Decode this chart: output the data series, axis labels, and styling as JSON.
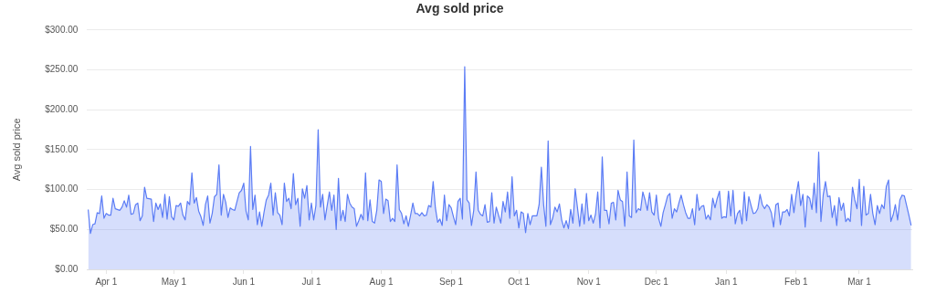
{
  "chart_data": {
    "type": "area",
    "title": "Avg sold price",
    "ylabel": "Avg sold price",
    "categories": [
      null,
      null,
      null,
      null,
      null,
      null,
      null,
      null,
      "Apr 1",
      null,
      null,
      null,
      null,
      null,
      null,
      null,
      null,
      null,
      null,
      null,
      null,
      null,
      null,
      null,
      null,
      null,
      null,
      null,
      null,
      null,
      null,
      null,
      null,
      null,
      null,
      null,
      null,
      null,
      "May 1",
      null,
      null,
      null,
      null,
      null,
      null,
      null,
      null,
      null,
      null,
      null,
      null,
      null,
      null,
      null,
      null,
      null,
      null,
      null,
      null,
      null,
      null,
      null,
      null,
      null,
      null,
      null,
      null,
      null,
      null,
      "Jun 1",
      null,
      null,
      null,
      null,
      null,
      null,
      null,
      null,
      null,
      null,
      null,
      null,
      null,
      null,
      null,
      null,
      null,
      null,
      null,
      null,
      null,
      null,
      null,
      null,
      null,
      null,
      null,
      null,
      null,
      "Jul 1",
      null,
      null,
      null,
      null,
      null,
      null,
      null,
      null,
      null,
      null,
      null,
      null,
      null,
      null,
      null,
      null,
      null,
      null,
      null,
      null,
      null,
      null,
      null,
      null,
      null,
      null,
      null,
      null,
      null,
      null,
      "Aug 1",
      null,
      null,
      null,
      null,
      null,
      null,
      null,
      null,
      null,
      null,
      null,
      null,
      null,
      null,
      null,
      null,
      null,
      null,
      null,
      null,
      null,
      null,
      null,
      null,
      null,
      null,
      null,
      null,
      null,
      null,
      "Sep 1",
      null,
      null,
      null,
      null,
      null,
      null,
      null,
      null,
      null,
      null,
      null,
      null,
      null,
      null,
      null,
      null,
      null,
      null,
      null,
      null,
      null,
      null,
      null,
      null,
      null,
      null,
      null,
      null,
      null,
      "Oct 1",
      null,
      null,
      null,
      null,
      null,
      null,
      null,
      null,
      null,
      null,
      null,
      null,
      null,
      null,
      null,
      null,
      null,
      null,
      null,
      null,
      null,
      null,
      null,
      null,
      null,
      null,
      null,
      null,
      null,
      null,
      "Nov 1",
      null,
      null,
      null,
      null,
      null,
      null,
      null,
      null,
      null,
      null,
      null,
      null,
      null,
      null,
      null,
      null,
      null,
      null,
      null,
      null,
      null,
      null,
      null,
      null,
      null,
      null,
      null,
      null,
      null,
      "Dec 1",
      null,
      null,
      null,
      null,
      null,
      null,
      null,
      null,
      null,
      null,
      null,
      null,
      null,
      null,
      null,
      null,
      null,
      null,
      null,
      null,
      null,
      null,
      null,
      null,
      null,
      null,
      null,
      null,
      null,
      null,
      "Jan 1",
      null,
      null,
      null,
      null,
      null,
      null,
      null,
      null,
      null,
      null,
      null,
      null,
      null,
      null,
      null,
      null,
      null,
      null,
      null,
      null,
      null,
      null,
      null,
      null,
      null,
      null,
      null,
      null,
      null,
      null,
      "Feb 1",
      null,
      null,
      null,
      null,
      null,
      null,
      null,
      null,
      null,
      null,
      null,
      null,
      null,
      null,
      null,
      null,
      null,
      null,
      null,
      null,
      null,
      null,
      null,
      null,
      null,
      null,
      null,
      "Mar 1",
      null,
      null,
      null,
      null,
      null,
      null,
      null,
      null,
      null,
      null,
      null,
      null,
      null,
      null,
      null,
      null,
      null,
      null,
      null,
      null,
      null,
      null,
      null
    ],
    "ylim": [
      0,
      300
    ],
    "yticks": [
      {
        "value": 0,
        "label": "$0.00"
      },
      {
        "value": 50,
        "label": "$50.00"
      },
      {
        "value": 100,
        "label": "$100.00"
      },
      {
        "value": 150,
        "label": "$150.00"
      },
      {
        "value": 200,
        "label": "$200.00"
      },
      {
        "value": 250,
        "label": "$250.00"
      },
      {
        "value": 300,
        "label": "$300.00"
      }
    ],
    "grid": "y",
    "legend": false,
    "series": [
      {
        "color": "#5b7cf5",
        "values": [
          75,
          45,
          56,
          57,
          71,
          70,
          92,
          64,
          70,
          68,
          68,
          89,
          76,
          null,
          74,
          78,
          86,
          78,
          93,
          69,
          70,
          81,
          83,
          61,
          67,
          103,
          89,
          null,
          88,
          60,
          83,
          75,
          82,
          65,
          94,
          63,
          91,
          66,
          62,
          80,
          79,
          83,
          68,
          62,
          85,
          81,
          121,
          83,
          90,
          73,
          66,
          55,
          81,
          92,
          58,
          70,
          91,
          94,
          131,
          68,
          94,
          84,
          65,
          77,
          75,
          74,
          85,
          96,
          99,
          108,
          73,
          62,
          154,
          75,
          93,
          56,
          72,
          54,
          72,
          87,
          93,
          108,
          68,
          96,
          71,
          68,
          56,
          108,
          85,
          89,
          76,
          120,
          81,
          89,
          54,
          101,
          89,
          105,
          62,
          83,
          62,
          80,
          175,
          78,
          94,
          62,
          80,
          97,
          74,
          93,
          50,
          114,
          61,
          74,
          60,
          94,
          83,
          78,
          76,
          54,
          61,
          69,
          62,
          121,
          61,
          87,
          60,
          58,
          74,
          112,
          110,
          70,
          88,
          86,
          60,
          64,
          60,
          131,
          75,
          70,
          57,
          67,
          54,
          68,
          83,
          70,
          70,
          67,
          71,
          67,
          68,
          80,
          78,
          110,
          77,
          59,
          63,
          55,
          93,
          61,
          81,
          77,
          66,
          56,
          85,
          89,
          63,
          254,
          87,
          83,
          55,
          74,
          122,
          74,
          69,
          67,
          81,
          59,
          60,
          96,
          58,
          78,
          68,
          58,
          85,
          72,
          97,
          64,
          116,
          67,
          74,
          52,
          72,
          70,
          46,
          70,
          56,
          67,
          67,
          67,
          81,
          128,
          81,
          54,
          161,
          56,
          64,
          78,
          72,
          82,
          62,
          52,
          61,
          51,
          75,
          58,
          101,
          null,
          54,
          82,
          57,
          95,
          61,
          68,
          58,
          69,
          97,
          52,
          141,
          74,
          74,
          57,
          83,
          84,
          62,
          99,
          87,
          85,
          54,
          122,
          67,
          65,
          162,
          71,
          76,
          74,
          97,
          87,
          74,
          96,
          72,
          68,
          93,
          64,
          54,
          71,
          81,
          92,
          95,
          64,
          76,
          72,
          83,
          93,
          81,
          71,
          64,
          64,
          76,
          56,
          94,
          74,
          79,
          80,
          63,
          68,
          62,
          89,
          77,
          89,
          98,
          64,
          66,
          65,
          98,
          67,
          99,
          57,
          70,
          74,
          57,
          97,
          61,
          91,
          80,
          70,
          71,
          76,
          94,
          81,
          76,
          81,
          78,
          71,
          53,
          81,
          83,
          56,
          72,
          72,
          75,
          67,
          94,
          71,
          93,
          110,
          80,
          94,
          53,
          92,
          89,
          75,
          108,
          71,
          147,
          60,
          93,
          110,
          91,
          92,
          65,
          80,
          55,
          90,
          74,
          83,
          60,
          64,
          60,
          103,
          87,
          76,
          113,
          55,
          104,
          68,
          70,
          94,
          70,
          56,
          80,
          70,
          81,
          76,
          104,
          112,
          60,
          68,
          81,
          62,
          87,
          93,
          92,
          80,
          68,
          55
        ]
      }
    ]
  }
}
